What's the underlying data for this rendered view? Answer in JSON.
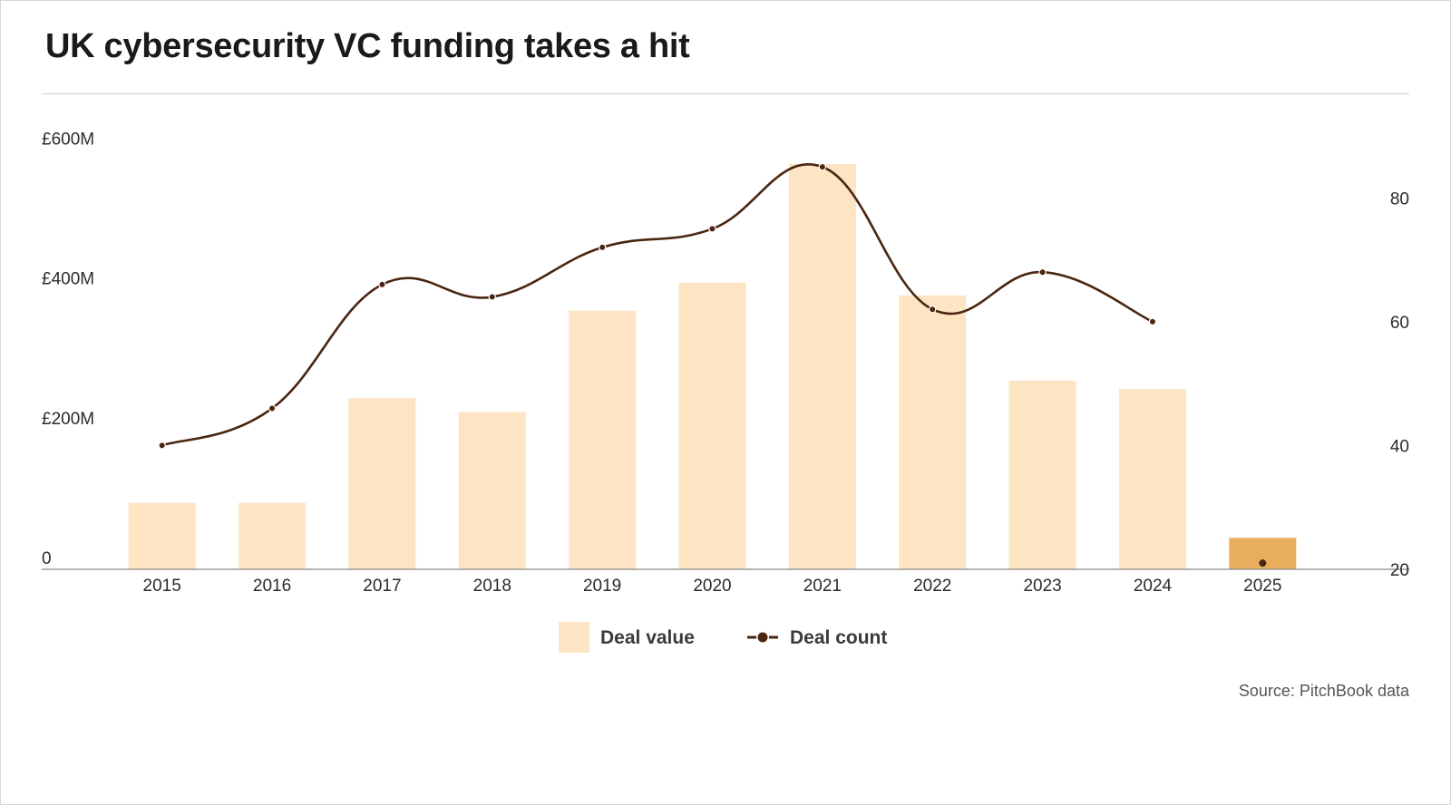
{
  "title": "UK cybersecurity VC funding takes a hit",
  "source": "Source: PitchBook data",
  "colors": {
    "bar": "#fde5c4",
    "bar_highlight": "#e8ae5e",
    "line": "#4a2510",
    "axis": "#8a8a8a",
    "text": "#2b2b2b"
  },
  "chart_data": {
    "type": "bar",
    "categories": [
      "2015",
      "2016",
      "2017",
      "2018",
      "2019",
      "2020",
      "2021",
      "2022",
      "2023",
      "2024",
      "2025"
    ],
    "series": [
      {
        "name": "Deal value",
        "type": "bar",
        "axis": "left",
        "values": [
          95,
          95,
          245,
          225,
          370,
          410,
          580,
          392,
          270,
          258,
          45
        ]
      },
      {
        "name": "Deal count",
        "type": "line",
        "axis": "right",
        "values": [
          40,
          46,
          66,
          64,
          72,
          75,
          85,
          62,
          68,
          60,
          21
        ]
      }
    ],
    "y_left": {
      "ticks": [
        0,
        200,
        400,
        600
      ],
      "tick_labels": [
        "0",
        "£200M",
        "£400M",
        "£600M"
      ],
      "ylim": [
        0,
        620
      ]
    },
    "y_right": {
      "ticks": [
        20,
        40,
        60,
        80
      ],
      "tick_labels": [
        "20",
        "40",
        "60",
        "80"
      ],
      "ylim": [
        20,
        90
      ]
    },
    "highlight_category": "2025",
    "line_connected_through": "2024",
    "grid": false,
    "legend": {
      "position": "bottom-center",
      "items": [
        "Deal value",
        "Deal count"
      ]
    }
  }
}
